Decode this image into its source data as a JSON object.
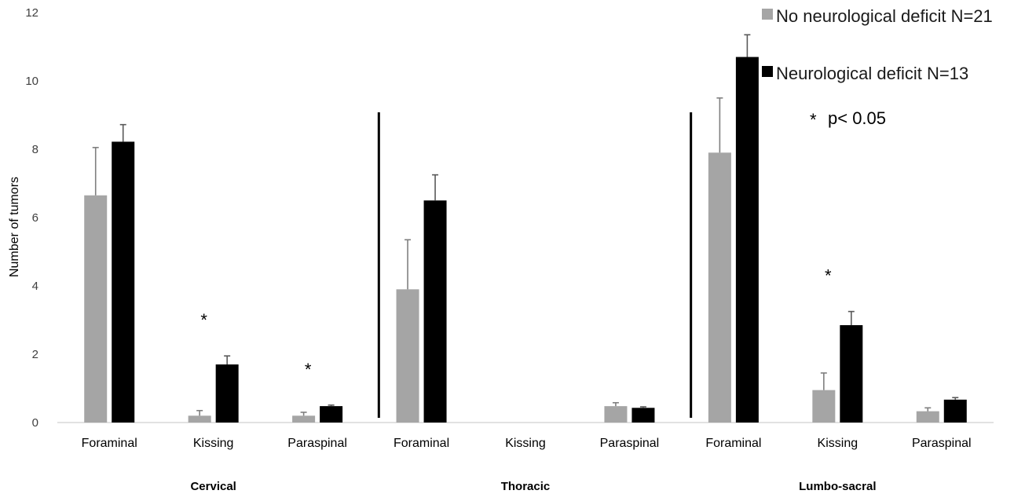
{
  "chart_data": {
    "type": "bar",
    "ylabel": "Number of tumors",
    "xlabel": "",
    "ylim": [
      0,
      12
    ],
    "yticks": [
      "0",
      "2",
      "4",
      "6",
      "8",
      "10",
      "12"
    ],
    "groups": [
      "Cervical",
      "Thoracic",
      "Lumbo-sacral"
    ],
    "categories": [
      "Foraminal",
      "Kissing",
      "Paraspinal",
      "Foraminal",
      "Kissing",
      "Paraspinal",
      "Foraminal",
      "Kissing",
      "Paraspinal"
    ],
    "series": [
      {
        "name": "No neurological deficit N=21",
        "color": "#a5a5a5",
        "values": [
          6.65,
          0.2,
          0.2,
          3.9,
          0.0,
          0.48,
          7.9,
          0.95,
          0.33
        ],
        "errors": [
          1.4,
          0.15,
          0.1,
          1.45,
          0.0,
          0.1,
          1.6,
          0.5,
          0.1
        ]
      },
      {
        "name": "Neurological deficit N=13",
        "color": "#000000",
        "values": [
          8.22,
          1.7,
          0.48,
          6.5,
          0.0,
          0.43,
          10.7,
          2.85,
          0.67
        ],
        "errors": [
          0.5,
          0.25,
          0.03,
          0.75,
          0.0,
          0.03,
          0.65,
          0.4,
          0.06
        ]
      }
    ],
    "significant_categories": [
      1,
      2,
      7
    ],
    "significance_marker": "*",
    "annotation": "p< 0.05",
    "group_separators_after": [
      2,
      5
    ],
    "legend_position": "top-right",
    "grid": false
  }
}
